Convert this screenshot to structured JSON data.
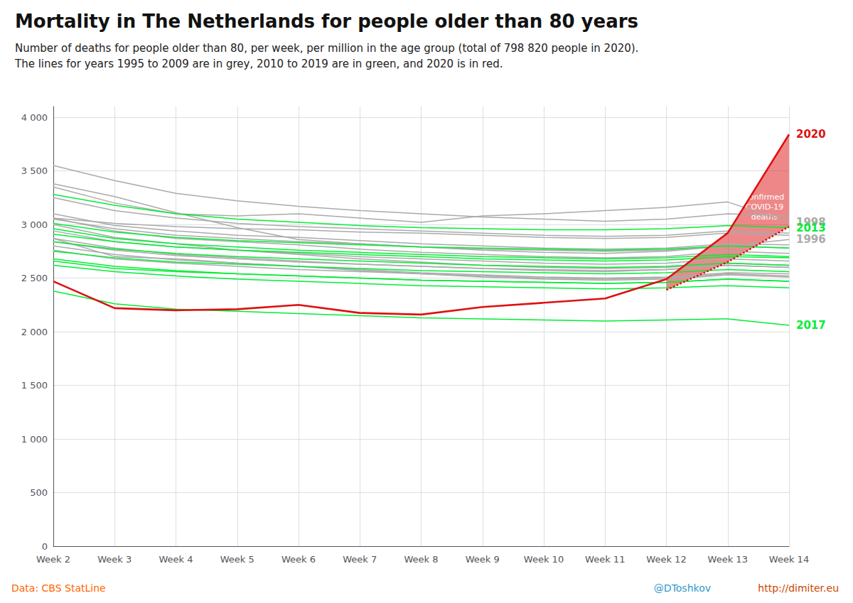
{
  "chart_data": {
    "type": "line",
    "title": "Mortality in The Netherlands for people older than 80 years",
    "subtitle": "Number of deaths for people older than 80, per week, per million in the age group (total of 798 820 people in 2020).\nThe lines for years 1995 to 2009 are in grey, 2010 to 2019 are in green, and 2020 is in red.",
    "categories": [
      "Week 2",
      "Week 3",
      "Week 4",
      "Week 5",
      "Week 6",
      "Week 7",
      "Week 8",
      "Week 9",
      "Week 10",
      "Week 11",
      "Week 12",
      "Week 13",
      "Week 14"
    ],
    "series": [
      {
        "color": "#aaaaaa",
        "values": [
          2870,
          2700,
          2680,
          2640,
          2610,
          2570,
          2540,
          2510,
          2490,
          2480,
          2490,
          2530,
          2510
        ]
      },
      {
        "name": "1996",
        "color": "#aaaaaa",
        "values": [
          3380,
          3260,
          3110,
          2970,
          2860,
          2820,
          2790,
          2760,
          2740,
          2730,
          2750,
          2800,
          2860
        ]
      },
      {
        "color": "#aaaaaa",
        "values": [
          3000,
          2880,
          2820,
          2760,
          2720,
          2680,
          2650,
          2620,
          2600,
          2590,
          2600,
          2640,
          2620
        ]
      },
      {
        "name": "1998",
        "color": "#aaaaaa",
        "values": [
          3350,
          3200,
          3100,
          3080,
          3100,
          3060,
          3020,
          3080,
          3100,
          3130,
          3160,
          3210,
          3020
        ]
      },
      {
        "color": "#aaaaaa",
        "values": [
          2870,
          2780,
          2720,
          2690,
          2660,
          2630,
          2610,
          2590,
          2570,
          2560,
          2580,
          2620,
          2600
        ]
      },
      {
        "color": "#aaaaaa",
        "values": [
          2800,
          2720,
          2670,
          2640,
          2610,
          2580,
          2550,
          2530,
          2510,
          2500,
          2510,
          2550,
          2540
        ]
      },
      {
        "color": "#aaaaaa",
        "values": [
          3060,
          2940,
          2870,
          2840,
          2810,
          2770,
          2740,
          2720,
          2700,
          2690,
          2700,
          2750,
          2730
        ]
      },
      {
        "color": "#aaaaaa",
        "values": [
          3550,
          3410,
          3290,
          3220,
          3170,
          3130,
          3100,
          3070,
          3050,
          3030,
          3050,
          3100,
          3080
        ]
      },
      {
        "color": "#aaaaaa",
        "values": [
          3100,
          2990,
          2940,
          2900,
          2880,
          2850,
          2820,
          2800,
          2780,
          2770,
          2780,
          2820,
          2810
        ]
      },
      {
        "color": "#aaaaaa",
        "values": [
          2940,
          2840,
          2790,
          2760,
          2730,
          2700,
          2680,
          2660,
          2640,
          2630,
          2640,
          2680,
          2660
        ]
      },
      {
        "color": "#aaaaaa",
        "values": [
          3060,
          3010,
          2980,
          2960,
          2950,
          2930,
          2920,
          2900,
          2880,
          2870,
          2880,
          2920,
          2900
        ]
      },
      {
        "color": "#aaaaaa",
        "values": [
          3250,
          3130,
          3060,
          3010,
          2980,
          2960,
          2940,
          2920,
          2900,
          2890,
          2900,
          2940,
          2920
        ]
      },
      {
        "color": "#aaaaaa",
        "values": [
          2760,
          2680,
          2640,
          2610,
          2580,
          2560,
          2540,
          2520,
          2500,
          2490,
          2500,
          2540,
          2520
        ]
      },
      {
        "color": "#aaaaaa",
        "values": [
          3050,
          2960,
          2900,
          2870,
          2840,
          2820,
          2790,
          2770,
          2760,
          2750,
          2760,
          2800,
          2780
        ]
      },
      {
        "color": "#aaaaaa",
        "values": [
          2840,
          2760,
          2710,
          2680,
          2650,
          2630,
          2610,
          2590,
          2580,
          2570,
          2580,
          2620,
          2600
        ]
      },
      {
        "color": "#00ee33",
        "values": [
          2960,
          2870,
          2820,
          2790,
          2760,
          2740,
          2720,
          2700,
          2690,
          2680,
          2690,
          2720,
          2700
        ]
      },
      {
        "color": "#00ee33",
        "values": [
          2840,
          2770,
          2730,
          2700,
          2680,
          2660,
          2640,
          2620,
          2610,
          2600,
          2610,
          2640,
          2620
        ]
      },
      {
        "color": "#00ee33",
        "values": [
          2910,
          2840,
          2790,
          2760,
          2740,
          2720,
          2700,
          2680,
          2670,
          2660,
          2670,
          2700,
          2690
        ]
      },
      {
        "name": "2013",
        "color": "#00ee33",
        "values": [
          3280,
          3180,
          3100,
          3050,
          3020,
          2990,
          2970,
          2960,
          2950,
          2950,
          2960,
          2990,
          2970
        ]
      },
      {
        "color": "#00ee33",
        "values": [
          2750,
          2690,
          2650,
          2630,
          2610,
          2590,
          2570,
          2560,
          2550,
          2540,
          2550,
          2580,
          2560
        ]
      },
      {
        "color": "#00ee33",
        "values": [
          3010,
          2930,
          2880,
          2850,
          2830,
          2810,
          2790,
          2780,
          2770,
          2760,
          2770,
          2800,
          2780
        ]
      },
      {
        "color": "#00ee33",
        "values": [
          2660,
          2590,
          2560,
          2540,
          2520,
          2500,
          2480,
          2470,
          2460,
          2450,
          2460,
          2490,
          2470
        ]
      },
      {
        "name": "2017",
        "color": "#00ee33",
        "values": [
          2380,
          2260,
          2210,
          2190,
          2170,
          2150,
          2130,
          2120,
          2110,
          2100,
          2110,
          2120,
          2060
        ]
      },
      {
        "color": "#00ee33",
        "values": [
          2680,
          2610,
          2570,
          2540,
          2520,
          2500,
          2480,
          2470,
          2460,
          2450,
          2460,
          2490,
          2470
        ]
      },
      {
        "color": "#00ee33",
        "values": [
          2620,
          2560,
          2520,
          2490,
          2470,
          2450,
          2430,
          2420,
          2410,
          2400,
          2410,
          2430,
          2410
        ]
      },
      {
        "name": "2020",
        "color": "#dd1111",
        "values": [
          2470,
          2220,
          2200,
          2210,
          2250,
          2175,
          2160,
          2230,
          2270,
          2310,
          2490,
          2920,
          3840
        ]
      },
      {
        "type": "area",
        "line_style": "dotted",
        "color": "#dd1111",
        "values": [
          null,
          null,
          null,
          null,
          null,
          null,
          null,
          null,
          null,
          null,
          2390,
          2650,
          2980
        ]
      }
    ],
    "annotations": [
      {
        "text": "confirmed\nCOVID-19\ndeaths"
      }
    ],
    "ylim": [
      0,
      4100
    ],
    "yticks": [
      0,
      500,
      {
        "value": 1000,
        "label": "1 000"
      },
      {
        "value": 1500,
        "label": "1 500"
      },
      {
        "value": 2000,
        "label": "2 000"
      },
      {
        "value": 2500,
        "label": "2 500"
      },
      {
        "value": 3000,
        "label": "3 000"
      },
      {
        "value": 3500,
        "label": "3 500"
      },
      {
        "value": 4000,
        "label": "4 000"
      }
    ],
    "grid": true,
    "footer": [
      {
        "text": "Data: CBS StatLine",
        "color": "#ff6600"
      },
      {
        "text": "@DToshkov",
        "color": "#3399cc"
      },
      {
        "text": "http://dimiter.eu",
        "color": "#cc4400"
      }
    ]
  }
}
